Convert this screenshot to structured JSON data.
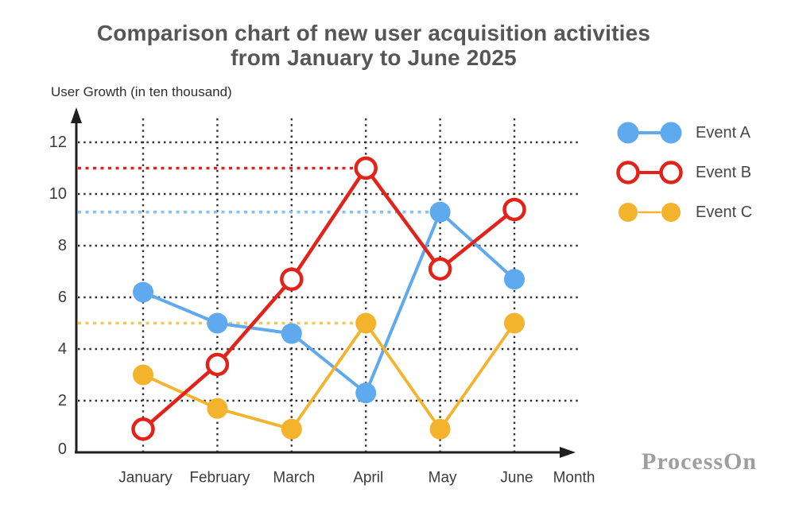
{
  "title": {
    "line1": "Comparison chart of new user acquisition activities",
    "line2": "from January to June 2025"
  },
  "watermark": {
    "text": "ProcessOn"
  },
  "chart_data": {
    "type": "line",
    "title": "Comparison chart of new user acquisition activities from January to June 2025",
    "ylabel": "User Growth (in ten thousand)",
    "xlabel": "Month",
    "categories": [
      "January",
      "February",
      "March",
      "April",
      "May",
      "June"
    ],
    "ylim": [
      0,
      13
    ],
    "yticks": [
      0,
      2,
      4,
      6,
      8,
      10,
      12
    ],
    "grid": "dotted-black-horizontal-and-vertical",
    "legend_position": "right",
    "series": [
      {
        "name": "Event A",
        "color": "#5FA9EF",
        "marker": "filled-circle",
        "values": [
          6.2,
          5,
          4.6,
          2.3,
          9.3,
          6.7
        ]
      },
      {
        "name": "Event B",
        "color": "#E3221A",
        "marker": "hollow-circle",
        "values": [
          0.9,
          3.4,
          6.7,
          11,
          7.1,
          9.4
        ]
      },
      {
        "name": "Event C",
        "color": "#F3B32D",
        "marker": "filled-circle",
        "values": [
          3,
          1.7,
          0.9,
          5,
          0.9,
          5
        ]
      }
    ],
    "reference_lines": [
      {
        "value": 11,
        "color": "#E3221A",
        "to_category": "April"
      },
      {
        "value": 9.3,
        "color": "#85C1F2",
        "to_category": "May"
      },
      {
        "value": 5,
        "color": "#F5C75A",
        "to_category": "April"
      }
    ]
  },
  "colors": {
    "axis": "#1F1F1F",
    "grid": "#2E2E2E",
    "tick_label": "#3C3C3C",
    "title": "#565656",
    "legend_label": "#474747",
    "watermark": "#9E9E9E"
  }
}
